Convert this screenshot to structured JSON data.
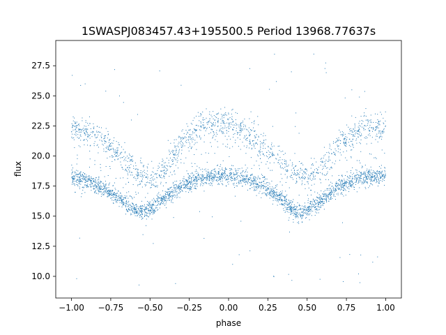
{
  "chart_data": {
    "type": "scatter",
    "title": "1SWASPJ083457.43+195500.5 Period 13968.77637s",
    "xlabel": "phase",
    "ylabel": "flux",
    "xlim": [
      -1.1,
      1.1
    ],
    "ylim": [
      8.2,
      29.6
    ],
    "xticks": [
      -1.0,
      -0.75,
      -0.5,
      -0.25,
      0.0,
      0.25,
      0.5,
      0.75,
      1.0
    ],
    "xtick_labels": [
      "−1.00",
      "−0.75",
      "−0.50",
      "−0.25",
      "0.00",
      "0.25",
      "0.50",
      "0.75",
      "1.00"
    ],
    "yticks": [
      10.0,
      12.5,
      15.0,
      17.5,
      20.0,
      22.5,
      25.0,
      27.5
    ],
    "ytick_labels": [
      "10.0",
      "12.5",
      "15.0",
      "17.5",
      "20.0",
      "22.5",
      "25.0",
      "27.5"
    ],
    "grid": false,
    "point_color": "#1f77b4",
    "series": [
      {
        "description_of_shape": "main branch",
        "phase": [
          -1.0,
          -0.9,
          -0.8,
          -0.7,
          -0.6,
          -0.55,
          -0.5,
          -0.4,
          -0.3,
          -0.2,
          -0.1,
          0.0,
          0.1,
          0.2,
          0.3,
          0.4,
          0.45,
          0.5,
          0.6,
          0.7,
          0.8,
          0.9,
          1.0
        ],
        "flux": [
          18.3,
          17.9,
          17.3,
          16.5,
          15.6,
          15.3,
          15.5,
          16.5,
          17.5,
          18.0,
          18.3,
          18.4,
          18.1,
          17.6,
          16.9,
          15.6,
          15.2,
          15.4,
          16.4,
          17.4,
          18.0,
          18.3,
          18.3
        ]
      },
      {
        "description_of_shape": "upper branch",
        "phase": [
          -1.0,
          -0.9,
          -0.8,
          -0.7,
          -0.6,
          -0.5,
          -0.4,
          -0.3,
          -0.2,
          -0.1,
          0.0,
          0.1,
          0.2,
          0.3,
          0.4,
          0.5,
          0.6,
          0.7,
          0.8,
          0.9,
          1.0
        ],
        "flux": [
          22.3,
          22.0,
          21.4,
          20.2,
          18.8,
          18.0,
          19.0,
          21.0,
          22.2,
          22.6,
          22.7,
          22.0,
          21.0,
          20.0,
          18.8,
          18.2,
          19.2,
          21.0,
          22.0,
          22.5,
          22.4
        ]
      }
    ]
  }
}
